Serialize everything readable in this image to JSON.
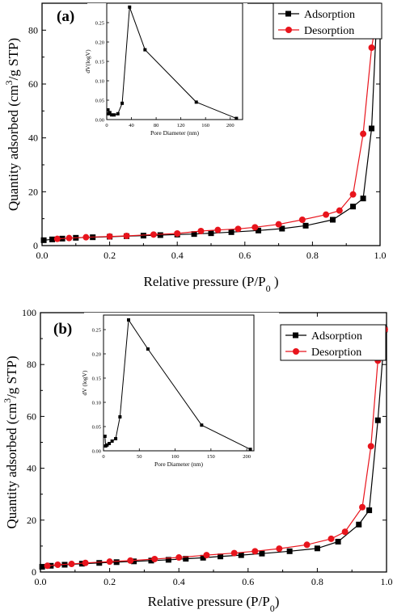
{
  "chart_data": [
    {
      "type": "line",
      "panel": "(a)",
      "xlabel_main": "Relative pressure (P/P",
      "xlabel_sub": "0",
      "xlabel_end": " )",
      "ylabel_main": "Quantity adsorbed (cm",
      "ylabel_sup": "3",
      "ylabel_end": "/g STP)",
      "xlim": [
        0,
        1.0
      ],
      "ylim": [
        0,
        90
      ],
      "xticks": [
        "0.0",
        "0.2",
        "0.4",
        "0.6",
        "0.8",
        "1.0"
      ],
      "xtick_values": [
        0,
        0.2,
        0.4,
        0.6,
        0.8,
        1.0
      ],
      "yticks": [
        "0",
        "20",
        "40",
        "60",
        "80"
      ],
      "ytick_values": [
        0,
        20,
        40,
        60,
        80
      ],
      "legend_position": "top-right",
      "series": [
        {
          "name": "Adsorption",
          "color": "#000000",
          "marker": "square",
          "x": [
            0.005,
            0.03,
            0.06,
            0.1,
            0.15,
            0.2,
            0.25,
            0.3,
            0.35,
            0.4,
            0.45,
            0.5,
            0.56,
            0.64,
            0.71,
            0.78,
            0.86,
            0.92,
            0.95,
            0.975,
            0.99
          ],
          "y": [
            2.0,
            2.3,
            2.6,
            2.9,
            3.1,
            3.3,
            3.5,
            3.7,
            3.9,
            4.1,
            4.3,
            4.6,
            5.0,
            5.6,
            6.3,
            7.4,
            9.6,
            14.5,
            17.5,
            43.5,
            84.5
          ]
        },
        {
          "name": "Desorption",
          "color": "#e8141c",
          "marker": "circle",
          "x": [
            0.99,
            0.975,
            0.95,
            0.92,
            0.88,
            0.84,
            0.77,
            0.7,
            0.63,
            0.58,
            0.52,
            0.47,
            0.4,
            0.33,
            0.25,
            0.2,
            0.13,
            0.08,
            0.045
          ],
          "y": [
            84.5,
            73.5,
            41.5,
            19.0,
            13.0,
            11.5,
            9.6,
            7.9,
            6.8,
            6.2,
            5.8,
            5.4,
            4.5,
            4.1,
            3.6,
            3.4,
            3.1,
            2.8,
            2.5
          ]
        }
      ],
      "inset": {
        "type": "line",
        "xlabel": "Pore Diameter (nm)",
        "ylabel": "dV(logV)",
        "xlim": [
          0,
          220
        ],
        "ylim": [
          0,
          0.3
        ],
        "xticks": [
          "0",
          "40",
          "80",
          "120",
          "160",
          "200"
        ],
        "xtick_values": [
          0,
          40,
          80,
          120,
          160,
          200
        ],
        "yticks": [
          "0.00",
          "0.05",
          "0.10",
          "0.15",
          "0.20",
          "0.25"
        ],
        "ytick_values": [
          0,
          0.05,
          0.1,
          0.15,
          0.2,
          0.25
        ],
        "x": [
          2,
          3,
          5,
          8,
          12,
          18,
          25,
          37,
          62,
          145,
          210
        ],
        "y": [
          0.025,
          0.015,
          0.018,
          0.012,
          0.012,
          0.015,
          0.042,
          0.29,
          0.18,
          0.045,
          0.003
        ]
      }
    },
    {
      "type": "line",
      "panel": "(b)",
      "xlabel_main": "Relative pressure (P/P",
      "xlabel_sub": "0",
      "xlabel_end": ")",
      "ylabel_main": "Quantity adsorbed (cm",
      "ylabel_sup": "3",
      "ylabel_end": "/g STP)",
      "xlim": [
        0,
        1.0
      ],
      "ylim": [
        0,
        100
      ],
      "xticks": [
        "0.0",
        "0.2",
        "0.4",
        "0.6",
        "0.8",
        "1.0"
      ],
      "xtick_values": [
        0,
        0.2,
        0.4,
        0.6,
        0.8,
        1.0
      ],
      "yticks": [
        "0",
        "20",
        "40",
        "60",
        "80",
        "100"
      ],
      "ytick_values": [
        0,
        20,
        40,
        60,
        80,
        100
      ],
      "legend_position": "top-right",
      "series": [
        {
          "name": "Adsorption",
          "color": "#000000",
          "marker": "square",
          "x": [
            0.005,
            0.03,
            0.07,
            0.12,
            0.17,
            0.22,
            0.27,
            0.32,
            0.37,
            0.42,
            0.47,
            0.52,
            0.58,
            0.64,
            0.72,
            0.8,
            0.86,
            0.92,
            0.95,
            0.975,
            0.995
          ],
          "y": [
            2.0,
            2.4,
            2.8,
            3.2,
            3.5,
            3.8,
            4.1,
            4.4,
            4.7,
            5.1,
            5.5,
            6.0,
            6.5,
            7.1,
            8.0,
            9.1,
            11.7,
            18.3,
            23.8,
            58.5,
            93.5
          ]
        },
        {
          "name": "Desorption",
          "color": "#e8141c",
          "marker": "circle",
          "x": [
            0.995,
            0.975,
            0.955,
            0.93,
            0.88,
            0.84,
            0.77,
            0.69,
            0.62,
            0.56,
            0.48,
            0.4,
            0.33,
            0.26,
            0.2,
            0.13,
            0.09,
            0.05,
            0.02
          ],
          "y": [
            93.5,
            81.5,
            48.5,
            25.0,
            15.5,
            12.8,
            10.5,
            9.0,
            8.0,
            7.3,
            6.5,
            5.6,
            5.0,
            4.4,
            4.0,
            3.5,
            3.1,
            2.8,
            2.4
          ]
        }
      ],
      "inset": {
        "type": "line",
        "xlabel": "Pore Diameter (nm)",
        "ylabel": "dV (logV)",
        "xlim": [
          0,
          210
        ],
        "ylim": [
          0,
          0.28
        ],
        "xticks": [
          "0",
          "50",
          "100",
          "150",
          "200"
        ],
        "xtick_values": [
          0,
          50,
          100,
          150,
          200
        ],
        "yticks": [
          "0.00",
          "0.05",
          "0.10",
          "0.15",
          "0.20",
          "0.25"
        ],
        "ytick_values": [
          0,
          0.05,
          0.1,
          0.15,
          0.2,
          0.25
        ],
        "x": [
          2,
          3,
          5,
          8,
          12,
          17,
          23,
          35,
          62,
          137,
          205
        ],
        "y": [
          0.03,
          0.01,
          0.012,
          0.015,
          0.02,
          0.025,
          0.07,
          0.27,
          0.21,
          0.053,
          0.003
        ]
      }
    }
  ]
}
